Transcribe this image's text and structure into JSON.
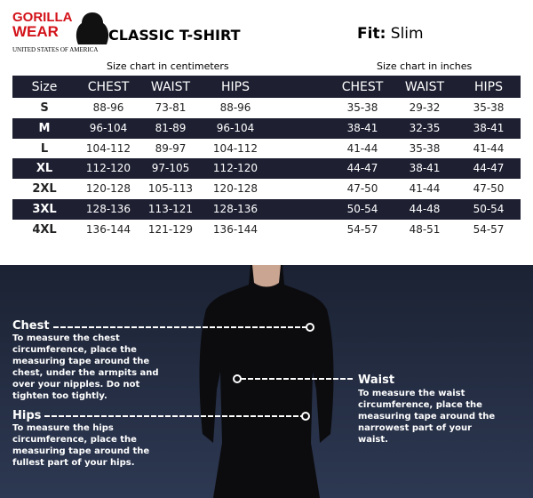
{
  "header": {
    "logo_top": "GORILLA",
    "logo_bottom": "WEAR",
    "logo_tagline": "UNITED STATES OF AMERICA",
    "title": "CLASSIC T-SHIRT",
    "fit_label": "Fit:",
    "fit_value": "Slim"
  },
  "table": {
    "caption_cm": "Size chart in centimeters",
    "caption_in": "Size chart in inches",
    "columns": [
      "Size",
      "CHEST",
      "WAIST",
      "HIPS",
      "CHEST",
      "WAIST",
      "HIPS"
    ],
    "rows": [
      [
        "S",
        "88-96",
        "73-81",
        "88-96",
        "35-38",
        "29-32",
        "35-38"
      ],
      [
        "M",
        "96-104",
        "81-89",
        "96-104",
        "38-41",
        "32-35",
        "38-41"
      ],
      [
        "L",
        "104-112",
        "89-97",
        "104-112",
        "41-44",
        "35-38",
        "41-44"
      ],
      [
        "XL",
        "112-120",
        "97-105",
        "112-120",
        "44-47",
        "38-41",
        "44-47"
      ],
      [
        "2XL",
        "120-128",
        "105-113",
        "120-128",
        "47-50",
        "41-44",
        "47-50"
      ],
      [
        "3XL",
        "128-136",
        "113-121",
        "128-136",
        "50-54",
        "44-48",
        "50-54"
      ],
      [
        "4XL",
        "136-144",
        "121-129",
        "136-144",
        "54-57",
        "48-51",
        "54-57"
      ]
    ]
  },
  "guide": {
    "chest": {
      "title": "Chest",
      "text": "To measure the chest circumference, place the measuring tape around the chest, under the armpits and over your nipples. Do not tighten too tightly."
    },
    "waist": {
      "title": "Waist",
      "text": "To measure the waist circumference, place the measuring tape around the narrowest part of your waist."
    },
    "hips": {
      "title": "Hips",
      "text": "To measure the hips circumference, place the measuring tape around the fullest part of your hips."
    }
  }
}
